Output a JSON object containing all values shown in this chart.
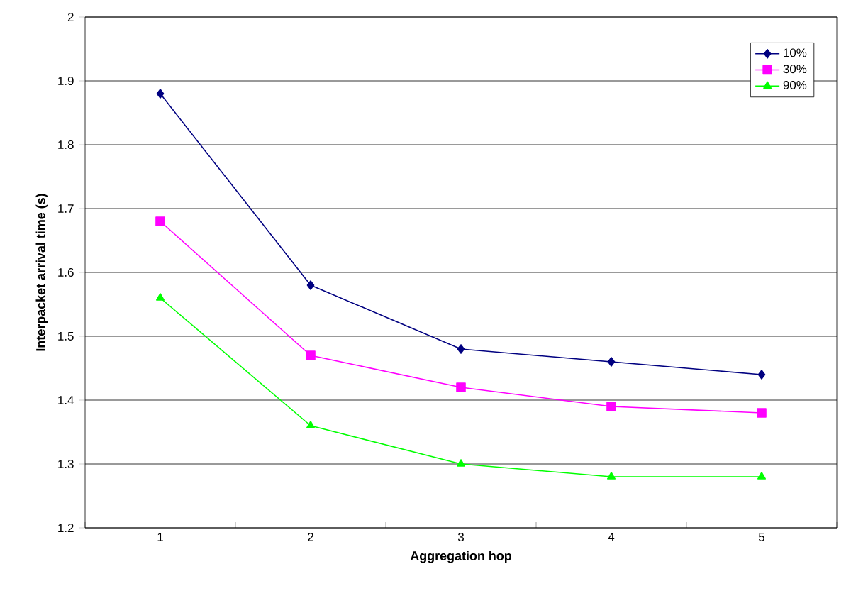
{
  "chart_data": {
    "type": "line",
    "xlabel": "Aggregation hop",
    "ylabel": "Interpacket arrival time (s)",
    "categories": [
      "1",
      "2",
      "3",
      "4",
      "5"
    ],
    "series": [
      {
        "name": "10%",
        "color": "#000080",
        "marker": "diamond",
        "values": [
          1.88,
          1.58,
          1.48,
          1.46,
          1.44
        ]
      },
      {
        "name": "30%",
        "color": "#ff00ff",
        "marker": "square",
        "values": [
          1.68,
          1.47,
          1.42,
          1.39,
          1.38
        ]
      },
      {
        "name": "90%",
        "color": "#00ff00",
        "marker": "triangle",
        "values": [
          1.56,
          1.36,
          1.3,
          1.28,
          1.28
        ]
      }
    ],
    "ylim": [
      1.2,
      2
    ],
    "yticks": [
      1.2,
      1.3,
      1.4,
      1.5,
      1.6,
      1.7,
      1.8,
      1.9,
      2
    ],
    "grid": "y",
    "legend": "top right",
    "line_style": "solid"
  }
}
